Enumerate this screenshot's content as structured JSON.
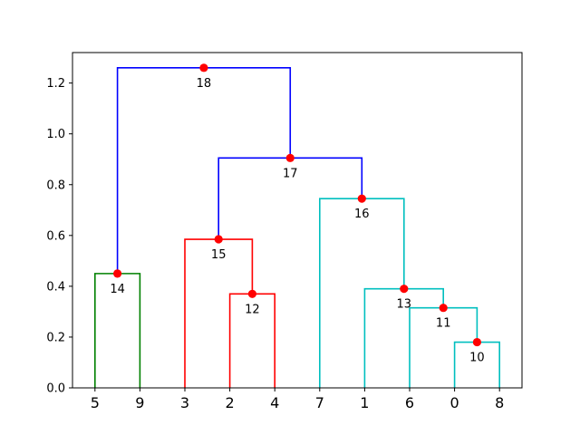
{
  "chart_data": {
    "type": "dendrogram",
    "leaf_order": [
      "5",
      "9",
      "3",
      "2",
      "4",
      "7",
      "1",
      "6",
      "0",
      "8"
    ],
    "ylim": [
      0,
      1.32
    ],
    "yticks": [
      0.0,
      0.2,
      0.4,
      0.6,
      0.8,
      1.0,
      1.2
    ],
    "ytick_labels": [
      "0.0",
      "0.2",
      "0.4",
      "0.6",
      "0.8",
      "1.0",
      "1.2"
    ],
    "merges": [
      {
        "id": "10",
        "children": [
          "0",
          "8"
        ],
        "height": 0.18,
        "color": "#00bfbf"
      },
      {
        "id": "11",
        "children": [
          "6",
          "10"
        ],
        "height": 0.315,
        "color": "#00bfbf"
      },
      {
        "id": "12",
        "children": [
          "2",
          "4"
        ],
        "height": 0.37,
        "color": "#ff0000"
      },
      {
        "id": "13",
        "children": [
          "1",
          "11"
        ],
        "height": 0.39,
        "color": "#00bfbf"
      },
      {
        "id": "14",
        "children": [
          "5",
          "9"
        ],
        "height": 0.45,
        "color": "#008000"
      },
      {
        "id": "15",
        "children": [
          "3",
          "12"
        ],
        "height": 0.585,
        "color": "#ff0000"
      },
      {
        "id": "16",
        "children": [
          "7",
          "13"
        ],
        "height": 0.745,
        "color": "#00bfbf"
      },
      {
        "id": "17",
        "children": [
          "15",
          "16"
        ],
        "height": 0.905,
        "color": "#0000ff"
      },
      {
        "id": "18",
        "children": [
          "14",
          "17"
        ],
        "height": 1.26,
        "color": "#0000ff"
      }
    ],
    "node_marker_color": "#ff0000"
  }
}
